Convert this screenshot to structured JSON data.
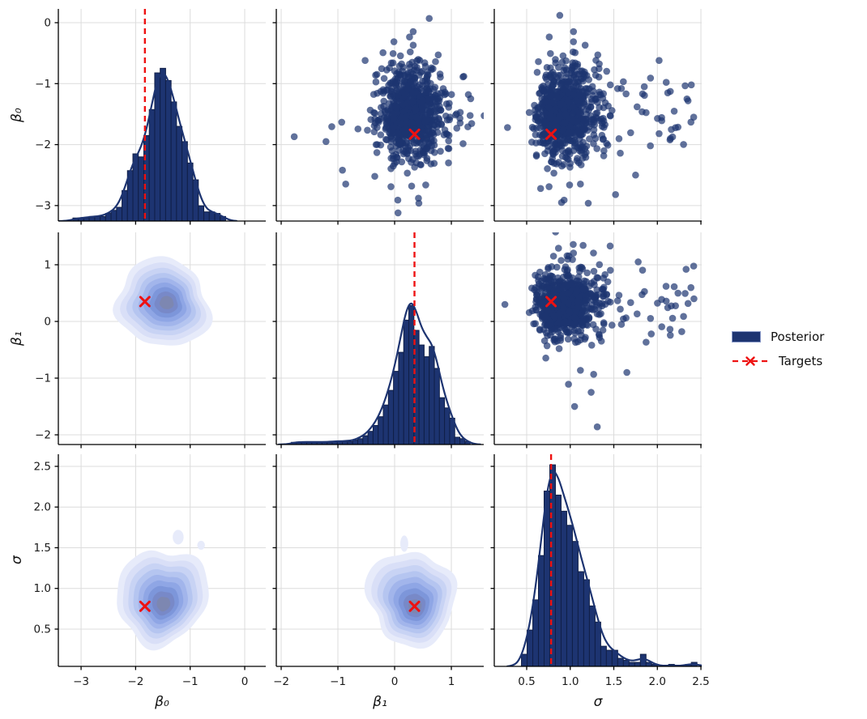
{
  "chart_data": {
    "type": "pairplot",
    "title": "",
    "grid": "on",
    "legend": {
      "position": "center-right",
      "items": [
        {
          "label": "Posterior",
          "type": "patch"
        },
        {
          "label": "Targets",
          "type": "dashed-x"
        }
      ]
    },
    "colors": {
      "posterior": "#1d3471",
      "bar_edge": "#101f47",
      "target": "#ee1111",
      "grid": "#dcdcdc",
      "spine": "#000000",
      "kde_levels": [
        "#e7ebfa",
        "#d9dff7",
        "#c8d3f4",
        "#b5c5f0",
        "#a2b5eb",
        "#8fa6e5",
        "#7d96da",
        "#7889c8",
        "#7d87b1"
      ]
    },
    "cols": [
      {
        "var": "beta0",
        "label": "β₀",
        "lim": [
          -3.417,
          0.386
        ],
        "ticks": [
          -3,
          -2,
          -1,
          0
        ],
        "tick_labels": [
          "−3",
          "−2",
          "−1",
          "0"
        ]
      },
      {
        "var": "beta1",
        "label": "β₁",
        "lim": [
          -2.086,
          1.571
        ],
        "ticks": [
          -2,
          -1,
          0,
          1
        ],
        "tick_labels": [
          "−2",
          "−1",
          "0",
          "1"
        ]
      },
      {
        "var": "sigma",
        "label": "σ",
        "lim": [
          0.128,
          2.509
        ],
        "ticks": [
          0.5,
          1.0,
          1.5,
          2.0,
          2.5
        ],
        "tick_labels": [
          "0.5",
          "1.0",
          "1.5",
          "2.0",
          "2.5"
        ]
      }
    ],
    "rows": [
      {
        "var": "beta0",
        "label": "β₀",
        "lim": [
          -3.254,
          0.226
        ],
        "ticks": [
          0,
          -1,
          -2,
          -3
        ],
        "tick_labels": [
          "0",
          "−1",
          "−2",
          "−3"
        ]
      },
      {
        "var": "beta1",
        "label": "β₁",
        "lim": [
          -2.171,
          1.571
        ],
        "ticks": [
          1,
          0,
          -1,
          -2
        ],
        "tick_labels": [
          "1",
          "0",
          "−1",
          "−2"
        ]
      },
      {
        "var": "sigma",
        "label": "σ",
        "lim": [
          0.042,
          2.649
        ],
        "ticks": [
          2.5,
          2.0,
          1.5,
          1.0,
          0.5
        ],
        "tick_labels": [
          "2.5",
          "2.0",
          "1.5",
          "1.0",
          "0.5"
        ]
      }
    ],
    "targets": {
      "beta0": -1.83,
      "beta1": 0.35,
      "sigma": 0.78
    },
    "panels": [
      {
        "r": 0,
        "c": 0,
        "kind": "hist",
        "var": "beta0"
      },
      {
        "r": 0,
        "c": 1,
        "kind": "scatter",
        "x": "beta1",
        "y": "beta0",
        "outlier_key": "r0c1"
      },
      {
        "r": 0,
        "c": 2,
        "kind": "scatter",
        "x": "sigma",
        "y": "beta0",
        "outlier_key": "r0c2"
      },
      {
        "r": 1,
        "c": 0,
        "kind": "kde",
        "key": "r1c0"
      },
      {
        "r": 1,
        "c": 1,
        "kind": "hist",
        "var": "beta1"
      },
      {
        "r": 1,
        "c": 2,
        "kind": "scatter",
        "x": "sigma",
        "y": "beta1",
        "outlier_key": "r1c2"
      },
      {
        "r": 2,
        "c": 0,
        "kind": "kde",
        "key": "r2c0"
      },
      {
        "r": 2,
        "c": 1,
        "kind": "kde",
        "key": "r2c1"
      },
      {
        "r": 2,
        "c": 2,
        "kind": "hist",
        "var": "sigma"
      }
    ],
    "hists": {
      "beta0": {
        "start": -3.15,
        "bin_width": 0.1,
        "peak_frac": 0.72,
        "heights": [
          0.02,
          0.02,
          0.02,
          0.03,
          0.03,
          0.03,
          0.05,
          0.07,
          0.09,
          0.2,
          0.33,
          0.44,
          0.42,
          0.56,
          0.73,
          0.97,
          1.0,
          0.92,
          0.78,
          0.62,
          0.52,
          0.38,
          0.27,
          0.1,
          0.06,
          0.06,
          0.05,
          0.03
        ]
      },
      "beta1": {
        "start": -1.82,
        "bin_width": 0.09,
        "peak_frac": 0.69,
        "heights": [
          0.015,
          0.015,
          0.015,
          0.015,
          0.015,
          0.015,
          0.015,
          0.015,
          0.02,
          0.02,
          0.02,
          0.02,
          0.03,
          0.04,
          0.06,
          0.09,
          0.13,
          0.19,
          0.27,
          0.37,
          0.5,
          0.63,
          0.85,
          0.95,
          0.78,
          0.68,
          0.6,
          0.67,
          0.52,
          0.32,
          0.25,
          0.18,
          0.05,
          0.04,
          0.02
        ]
      },
      "sigma": {
        "start": 0.44,
        "bin_width": 0.065,
        "peak_frac": 0.95,
        "heights": [
          0.06,
          0.18,
          0.33,
          0.55,
          0.87,
          1.0,
          0.85,
          0.77,
          0.7,
          0.62,
          0.47,
          0.43,
          0.3,
          0.22,
          0.1,
          0.08,
          0.08,
          0.04,
          0.03,
          0.02,
          0.02,
          0.06,
          0.02,
          0.01,
          0.0,
          0.0,
          0.01,
          0.0,
          0.0,
          0.01,
          0.02
        ]
      }
    },
    "kde": {
      "r1c0": {
        "cx": -1.5,
        "cy": 0.32,
        "rx": 0.85,
        "ry": 0.78,
        "dx": 0.07,
        "dy": 0.01,
        "seed": 11,
        "extras": []
      },
      "r2c0": {
        "cx": -1.52,
        "cy": 0.9,
        "rx": 0.82,
        "ry": 0.6,
        "dx": 0.03,
        "dy": -0.09,
        "seed": 23,
        "extras": [
          {
            "x": -0.8,
            "y": 1.53,
            "rx": 0.07,
            "ry": 0.055
          },
          {
            "x": -1.22,
            "y": 1.63,
            "rx": 0.1,
            "ry": 0.09
          }
        ]
      },
      "r2c1": {
        "cx": 0.3,
        "cy": 0.88,
        "rx": 0.78,
        "ry": 0.58,
        "dx": 0.06,
        "dy": -0.1,
        "seed": 37,
        "extras": [
          {
            "x": 0.17,
            "y": 1.55,
            "rx": 0.07,
            "ry": 0.1
          }
        ]
      }
    },
    "scatter": {
      "n": 860,
      "seed": 42,
      "point_radius": 4.3,
      "opacity": 0.7,
      "beta0": {
        "mean": -1.5,
        "sd": 0.35,
        "tail_frac": 0.05,
        "tail_mult": 2.0
      },
      "beta1": {
        "mean": 0.3,
        "sd": 0.3,
        "tail_frac": 0.05,
        "tail_mult": 1.9
      },
      "sigma": {
        "log_mean": -0.075,
        "log_sd": 0.2,
        "tail_frac": 0.03,
        "tail_min": 1.5,
        "tail_max": 2.45
      }
    },
    "outliers": {
      "r0c1": [
        [
          0.61,
          0.07
        ],
        [
          -1.77,
          -1.87
        ],
        [
          -1.21,
          -1.95
        ],
        [
          -0.92,
          -2.42
        ],
        [
          0.42,
          -2.88
        ],
        [
          0.06,
          -3.12
        ],
        [
          -0.35,
          -2.52
        ],
        [
          0.95,
          -2.3
        ],
        [
          1.3,
          -1.18
        ],
        [
          1.22,
          -0.88
        ],
        [
          -0.52,
          -0.62
        ],
        [
          0.3,
          -2.68
        ]
      ],
      "r0c2": [
        [
          0.88,
          0.12
        ],
        [
          2.39,
          -1.02
        ],
        [
          2.34,
          -1.25
        ],
        [
          2.15,
          -1.9
        ],
        [
          2.02,
          -1.82
        ],
        [
          1.92,
          -2.02
        ],
        [
          1.75,
          -2.5
        ],
        [
          1.52,
          -2.82
        ],
        [
          0.66,
          -2.72
        ],
        [
          0.9,
          -2.95
        ],
        [
          2.02,
          -0.62
        ],
        [
          1.85,
          -1.05
        ],
        [
          0.28,
          -1.72
        ]
      ],
      "r1c2": [
        [
          2.33,
          0.92
        ],
        [
          2.42,
          0.4
        ],
        [
          2.28,
          -0.18
        ],
        [
          1.93,
          -0.22
        ],
        [
          2.1,
          0.62
        ],
        [
          1.31,
          -1.86
        ],
        [
          1.24,
          -1.25
        ],
        [
          1.05,
          -1.5
        ],
        [
          0.25,
          0.3
        ],
        [
          1.65,
          -0.9
        ],
        [
          1.78,
          1.05
        ]
      ]
    }
  }
}
